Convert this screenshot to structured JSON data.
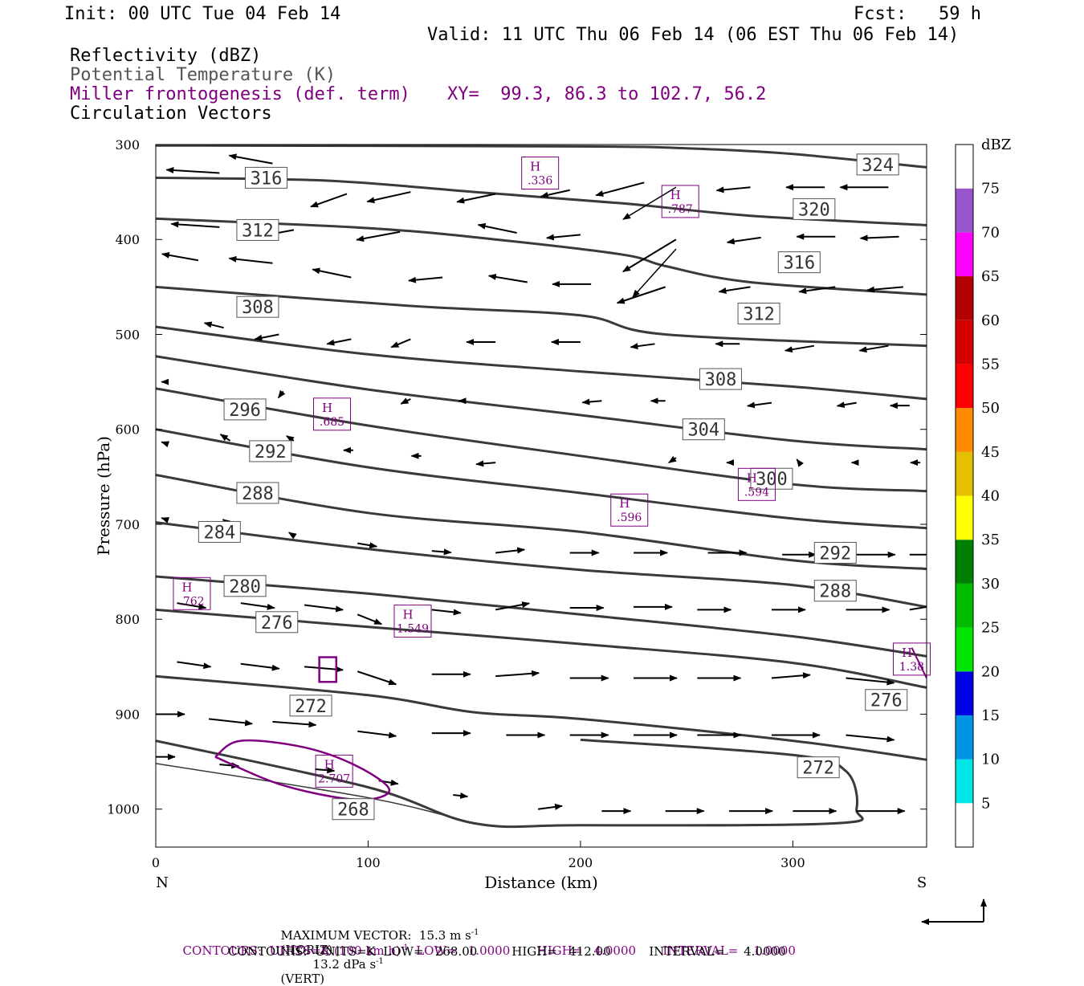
{
  "header": {
    "init": "Init: 00 UTC Tue 04 Feb 14",
    "fcst": "Fcst:   59 h",
    "valid": "Valid: 11 UTC Thu 06 Feb 14 (06 EST Thu 06 Feb 14)",
    "line1": "Reflectivity (dBZ)",
    "line2": "Potential Temperature (K)",
    "line3": "Miller frontogenesis (def. term)",
    "xy": "XY=  99.3, 86.3 to 102.7, 56.2",
    "line4": "Circulation Vectors"
  },
  "colors": {
    "theta": "#3a3a3a",
    "frontogenesis": "#800080",
    "vector": "#000000"
  },
  "chart_data": {
    "type": "cross-section",
    "xlabel": "Distance (km)",
    "ylabel": "Pressure (hPa)",
    "xlim": [
      0,
      363
    ],
    "ylim": [
      300,
      1040
    ],
    "x_ticks": [
      0,
      100,
      200,
      300
    ],
    "y_ticks": [
      300,
      400,
      500,
      600,
      700,
      800,
      900,
      1000
    ],
    "x_end_labels": {
      "left": "N",
      "right": "S"
    },
    "theta_contours": [
      {
        "label": "324",
        "points": [
          [
            0,
            301
          ],
          [
            200,
            302
          ],
          [
            250,
            304
          ],
          [
            300,
            310
          ],
          [
            363,
            324
          ]
        ],
        "labels_at": [
          [
            340,
            321
          ]
        ]
      },
      {
        "label": "320",
        "points": [
          [
            0,
            335
          ],
          [
            80,
            338
          ],
          [
            150,
            350
          ],
          [
            220,
            362
          ],
          [
            280,
            375
          ],
          [
            363,
            385
          ]
        ],
        "labels_at": [
          [
            310,
            368
          ]
        ]
      },
      {
        "label": "316",
        "points": [
          [
            0,
            378
          ],
          [
            100,
            388
          ],
          [
            160,
            400
          ],
          [
            220,
            416
          ],
          [
            240,
            428
          ],
          [
            280,
            445
          ],
          [
            363,
            458
          ]
        ],
        "labels_at": [
          [
            52,
            335
          ],
          [
            303,
            424
          ]
        ]
      },
      {
        "label": "312",
        "points": [
          [
            0,
            450
          ],
          [
            120,
            470
          ],
          [
            200,
            480
          ],
          [
            240,
            500
          ],
          [
            363,
            512
          ]
        ],
        "labels_at": [
          [
            48,
            390
          ],
          [
            284,
            478
          ]
        ]
      },
      {
        "label": "308",
        "points": [
          [
            0,
            492
          ],
          [
            100,
            521
          ],
          [
            200,
            539
          ],
          [
            300,
            555
          ],
          [
            363,
            568
          ]
        ],
        "labels_at": [
          [
            48,
            471
          ],
          [
            266,
            547
          ]
        ]
      },
      {
        "label": "304",
        "points": [
          [
            0,
            523
          ],
          [
            100,
            558
          ],
          [
            200,
            585
          ],
          [
            300,
            612
          ],
          [
            363,
            621
          ]
        ],
        "labels_at": [
          [
            258,
            600
          ]
        ]
      },
      {
        "label": "300",
        "points": [
          [
            0,
            557
          ],
          [
            100,
            596
          ],
          [
            200,
            628
          ],
          [
            300,
            658
          ],
          [
            363,
            665
          ]
        ],
        "labels_at": [
          [
            290,
            652
          ]
        ]
      },
      {
        "label": "296",
        "points": [
          [
            0,
            600
          ],
          [
            100,
            640
          ],
          [
            200,
            667
          ],
          [
            300,
            694
          ],
          [
            363,
            704
          ]
        ],
        "labels_at": [
          [
            42,
            579
          ]
        ]
      },
      {
        "label": "292",
        "points": [
          [
            0,
            648
          ],
          [
            100,
            688
          ],
          [
            200,
            708
          ],
          [
            300,
            738
          ],
          [
            363,
            747
          ]
        ],
        "labels_at": [
          [
            54,
            623
          ],
          [
            320,
            730
          ]
        ]
      },
      {
        "label": "288",
        "points": [
          [
            0,
            698
          ],
          [
            100,
            726
          ],
          [
            200,
            748
          ],
          [
            300,
            764
          ],
          [
            363,
            787
          ]
        ],
        "labels_at": [
          [
            48,
            667
          ],
          [
            320,
            770
          ]
        ]
      },
      {
        "label": "284",
        "points": [
          [
            0,
            755
          ],
          [
            100,
            773
          ],
          [
            200,
            795
          ],
          [
            300,
            818
          ],
          [
            363,
            839
          ]
        ],
        "labels_at": [
          [
            30,
            708
          ]
        ]
      },
      {
        "label": "280",
        "points": [
          [
            0,
            790
          ],
          [
            100,
            808
          ],
          [
            200,
            826
          ],
          [
            300,
            846
          ],
          [
            363,
            872
          ]
        ],
        "labels_at": [
          [
            42,
            765
          ]
        ]
      },
      {
        "label": "276",
        "points": [
          [
            0,
            860
          ],
          [
            100,
            880
          ],
          [
            150,
            898
          ],
          [
            200,
            905
          ],
          [
            300,
            928
          ],
          [
            363,
            948
          ]
        ],
        "labels_at": [
          [
            57,
            803
          ],
          [
            344,
            885
          ]
        ]
      },
      {
        "label": "272",
        "points": [
          [
            0,
            928
          ],
          [
            100,
            977
          ],
          [
            150,
            1015
          ],
          [
            200,
            1017
          ],
          [
            320,
            1015
          ],
          [
            330,
            1000
          ],
          [
            325,
            960
          ],
          [
            300,
            943
          ],
          [
            200,
            927
          ]
        ],
        "labels_at": [
          [
            73,
            891
          ],
          [
            312,
            956
          ]
        ]
      },
      {
        "label": "268",
        "points": [
          [
            0,
            952
          ],
          [
            100,
            988
          ],
          [
            150,
            1015
          ]
        ],
        "labels_at": [
          [
            93,
            1000
          ]
        ]
      }
    ],
    "frontogenesis_maxima": [
      {
        "label": "H",
        "value": ".336",
        "x": 181,
        "y": 330
      },
      {
        "label": "H",
        "value": ".787",
        "x": 247,
        "y": 360
      },
      {
        "label": "H",
        "value": ".685",
        "x": 83,
        "y": 584
      },
      {
        "label": "H",
        "value": ".594",
        "x": 283,
        "y": 658
      },
      {
        "label": "H",
        "value": ".596",
        "x": 223,
        "y": 685
      },
      {
        "label": "H",
        "value": ".762",
        "x": 17,
        "y": 773
      },
      {
        "label": "H",
        "value": "1.549",
        "x": 121,
        "y": 802
      },
      {
        "label": "H",
        "value": "1.38",
        "x": 356,
        "y": 842
      },
      {
        "label": "H",
        "value": "2.707",
        "x": 84,
        "y": 960
      }
    ],
    "colorbar": {
      "title": "dBZ",
      "levels": [
        "5",
        "10",
        "15",
        "20",
        "25",
        "30",
        "35",
        "40",
        "45",
        "50",
        "55",
        "60",
        "65",
        "70",
        "75"
      ],
      "colors": [
        "#ffffff",
        "#00e5e5",
        "#0094e5",
        "#0000e5",
        "#00e500",
        "#00bb00",
        "#008000",
        "#ffff00",
        "#e5c000",
        "#ff8c00",
        "#ff0000",
        "#d50000",
        "#b30000",
        "#ff00ff",
        "#9855cc",
        "#ffffff"
      ]
    },
    "footer": {
      "max_vector": "MAXIMUM VECTOR:  15.3 m s",
      "max_vector_unit": "-1",
      "horiz": "(HORIZ)",
      "vert_val": "13.2 dPa s",
      "vert_unit": "-1",
      "vert": "(VERT)",
      "contours1a": "CONTOURS:  UNITS=K (100 km h)",
      "contours1b": "-1",
      "contours1c": "  LOW=   1.0000       HIGH=   4.0000       INTERVAL=    1.0000",
      "contours2": "CONTOURS:  UNITS=K  LOW=   268.00         HIGH=   412.00          INTERVAL=     4.0000"
    }
  }
}
